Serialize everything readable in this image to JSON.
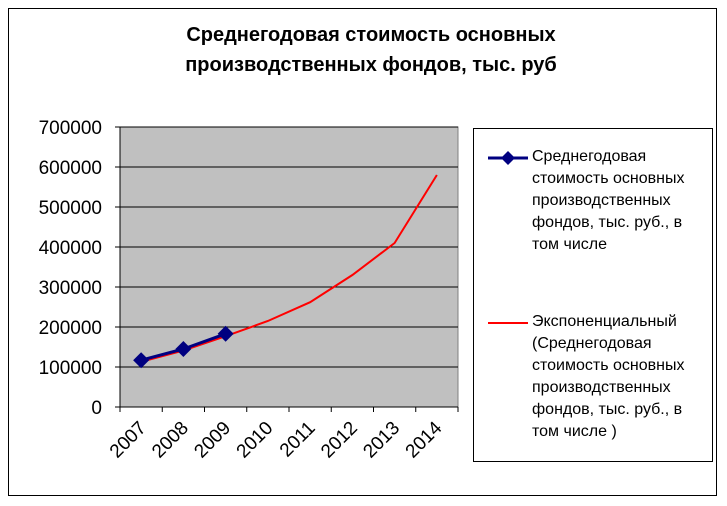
{
  "chart_data": {
    "type": "line",
    "title": "Среднегодовая стоимость основных производственных фондов, тыс. руб",
    "categories": [
      "2007",
      "2008",
      "2009",
      "2010",
      "2011",
      "2012",
      "2013",
      "2014"
    ],
    "series": [
      {
        "name": "Среднегодовая стоимость основных производственных фондов, тыс. руб., в том числе",
        "color": "#000080",
        "marker": "diamond",
        "values": [
          117000,
          145000,
          183000,
          null,
          null,
          null,
          null,
          null
        ]
      },
      {
        "name": "Экспоненциальный (Среднегодовая стоимость основных производственных фондов, тыс. руб., в том числе )",
        "color": "#ff0000",
        "values": [
          113000,
          141000,
          177000,
          215000,
          262000,
          330000,
          410000,
          580000
        ]
      }
    ],
    "ylim": [
      0,
      700000
    ],
    "yticks": [
      0,
      100000,
      200000,
      300000,
      400000,
      500000,
      600000,
      700000
    ],
    "grid": true,
    "legend": "right",
    "plot_background": "#c0c0c0"
  }
}
